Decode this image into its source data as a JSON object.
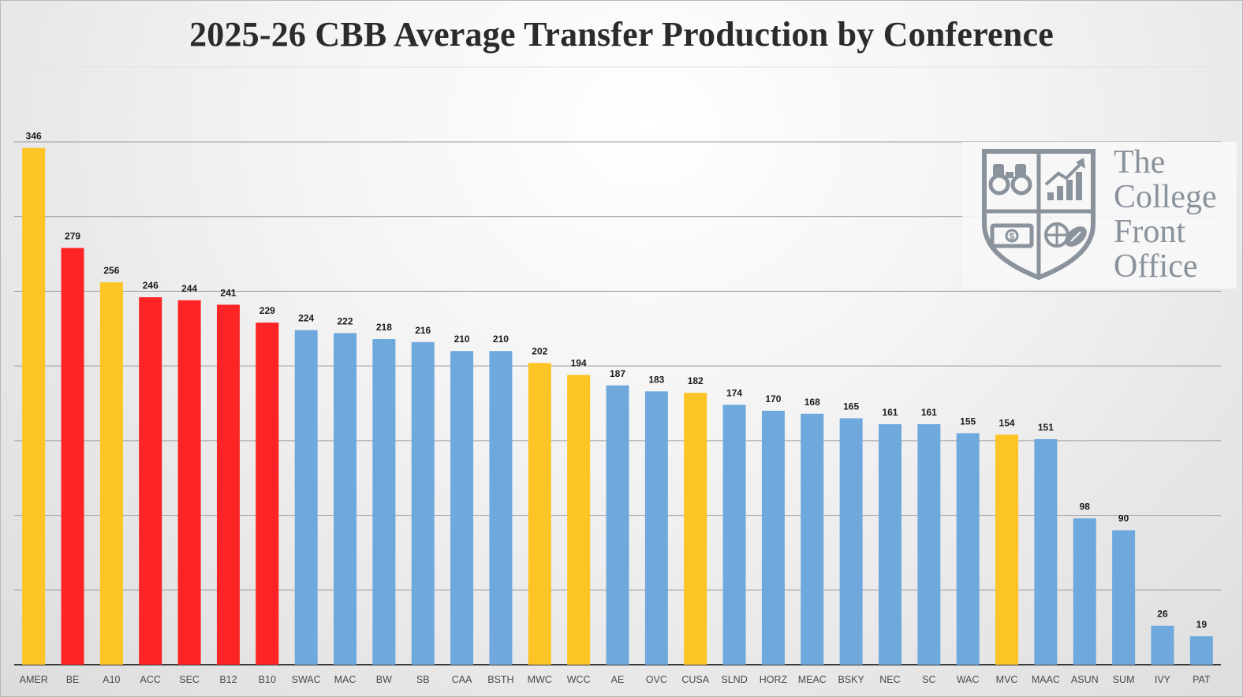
{
  "chart_data": {
    "type": "bar",
    "title": "2025-26 CBB Average Transfer Production by Conference",
    "xlabel": "",
    "ylabel": "",
    "ylim": [
      0,
      350
    ],
    "grid": true,
    "categories": [
      "AMER",
      "BE",
      "A10",
      "ACC",
      "SEC",
      "B12",
      "B10",
      "SWAC",
      "MAC",
      "BW",
      "SB",
      "CAA",
      "BSTH",
      "MWC",
      "WCC",
      "AE",
      "OVC",
      "CUSA",
      "SLND",
      "HORZ",
      "MEAC",
      "BSKY",
      "NEC",
      "SC",
      "WAC",
      "MVC",
      "MAAC",
      "ASUN",
      "SUM",
      "IVY",
      "PAT"
    ],
    "values": [
      346,
      279,
      256,
      246,
      244,
      241,
      229,
      224,
      222,
      218,
      216,
      210,
      210,
      202,
      194,
      187,
      183,
      182,
      174,
      170,
      168,
      165,
      161,
      161,
      155,
      154,
      151,
      98,
      90,
      26,
      19
    ],
    "colors": [
      "#fdc425",
      "#fd2426",
      "#fdc425",
      "#fd2426",
      "#fd2426",
      "#fd2426",
      "#fd2426",
      "#6fa8dc",
      "#6fa8dc",
      "#6fa8dc",
      "#6fa8dc",
      "#6fa8dc",
      "#6fa8dc",
      "#fdc425",
      "#fdc425",
      "#6fa8dc",
      "#6fa8dc",
      "#fdc425",
      "#6fa8dc",
      "#6fa8dc",
      "#6fa8dc",
      "#6fa8dc",
      "#6fa8dc",
      "#6fa8dc",
      "#6fa8dc",
      "#fdc425",
      "#6fa8dc",
      "#6fa8dc",
      "#6fa8dc",
      "#6fa8dc",
      "#6fa8dc"
    ]
  },
  "logo": {
    "line1": "The",
    "line2": "College",
    "line3": "Front",
    "line4": "Office",
    "color": "#8a929c"
  }
}
